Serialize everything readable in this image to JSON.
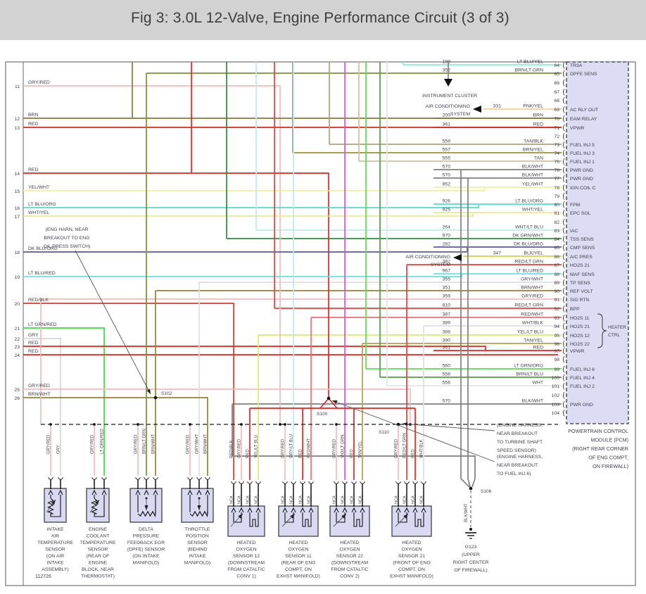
{
  "title": "Fig 3: 3.0L 12-Valve, Engine Performance Circuit (3 of 3)",
  "doc_number": "112726",
  "wire_colors": {
    "RED": "#e8231f",
    "GRY/RED": "#f1bcbc",
    "BRN": "#8f7833",
    "YEL/WHT": "#f1ef9b",
    "WHT/YEL": "#ede98f",
    "LT BLU/ORG": "#4fdccf",
    "DK BLU/ORG": "#5a5aa0",
    "LT BLU/RED": "#62e3e8",
    "RED/BLK": "#de3a2a",
    "LT GRN/RED": "#3ddc3d",
    "GRY": "#d6d6d6",
    "BRN/WHT": "#9c8033",
    "LT BLU/YEL": "#84ebde",
    "BRN/LT GRN": "#78932e",
    "PNK/YEL": "#f6cd9b",
    "TAN/BLK": "#b3a176",
    "BRN/YEL": "#a68d2c",
    "TAN": "#cfc09a",
    "BLK/WHT": "#7f7f7f",
    "WHT/LT BLU": "#bce9f2",
    "DK GRN/WHT": "#2e8b3b",
    "BLK/YEL": "#d9d33a",
    "RED/LT GRN": "#e6413a",
    "GRY/WHT": "#dedede",
    "RED/WHT": "#ef6f6f",
    "WHT/BLK": "#e0e0e0",
    "YEL/LT BLU": "#d9ee69",
    "TAN/YEL": "#baa045",
    "VIO/LT GRN": "#e14fe1",
    "LT GRN/ORG": "#5ce04e",
    "BRN/LT BLU": "#559a46",
    "WHT": "#e4e4e4",
    "GRY/LT BLU": "#c2e7ef"
  },
  "pcm": {
    "name_lines": [
      "POWERTRAIN CONTROL",
      "MODULE (PCM)",
      "(RIGHT REAR CORNER",
      "OF ENG COMPT,",
      "ON FIREWALL)"
    ],
    "heater_bracket": [
      "HEATER",
      "CTRL"
    ],
    "pins": [
      {
        "pin": 64,
        "circuit": "199",
        "color": "LT BLU/YEL",
        "label": "TR3A"
      },
      {
        "pin": 65,
        "circuit": "352",
        "color": "BRN/LT GRN",
        "label": "DPFE SENS"
      },
      {
        "pin": 66
      },
      {
        "pin": 67
      },
      {
        "pin": 68
      },
      {
        "pin": 69,
        "circuit": "331",
        "color": "PNK/YEL",
        "label": "AC RLY OUT"
      },
      {
        "pin": 70,
        "circuit": "200",
        "color": "BRN",
        "label": "EAM RELAY"
      },
      {
        "pin": 71,
        "circuit": "361",
        "color": "RED",
        "label": "VPWR"
      },
      {
        "pin": 72
      },
      {
        "pin": 73,
        "circuit": "559",
        "color": "TAN/BLK",
        "label": "FUEL INJ 5"
      },
      {
        "pin": 74,
        "circuit": "557",
        "color": "BRN/YEL",
        "label": "FUEL INJ 3"
      },
      {
        "pin": 75,
        "circuit": "555",
        "color": "TAN",
        "label": "FUEL INJ 1"
      },
      {
        "pin": 76,
        "circuit": "570",
        "color": "BLK/WHT",
        "label": "PWR GND"
      },
      {
        "pin": 77,
        "circuit": "570",
        "color": "BLK/WHT",
        "label": "PWR GND"
      },
      {
        "pin": 78,
        "circuit": "852",
        "color": "YEL/WHT",
        "label": "IGN COIL C"
      },
      {
        "pin": 79
      },
      {
        "pin": 80,
        "circuit": "926",
        "color": "LT BLU/ORG",
        "label": "FPM"
      },
      {
        "pin": 81,
        "circuit": "925",
        "color": "WHT/YEL",
        "label": "EPC SOL"
      },
      {
        "pin": 82
      },
      {
        "pin": 83,
        "circuit": "264",
        "color": "WHT/LT BLU",
        "label": "IAC"
      },
      {
        "pin": 84,
        "circuit": "970",
        "color": "DK GRN/WHT",
        "label": "TSS SENS"
      },
      {
        "pin": 85,
        "circuit": "282",
        "color": "DK BLU/ORG",
        "label": "CMP SENS"
      },
      {
        "pin": 86,
        "circuit": "347",
        "color": "BLK/YEL",
        "label": "A/C PRES"
      },
      {
        "pin": 87,
        "circuit": "392",
        "color": "RED/LT GRN",
        "label": "HO2S 21"
      },
      {
        "pin": 88,
        "circuit": "967",
        "color": "LT BLU/RED",
        "label": "MAF SENS"
      },
      {
        "pin": 89,
        "circuit": "355",
        "color": "GRY/WHT",
        "label": "TP SENS"
      },
      {
        "pin": 90,
        "circuit": "351",
        "color": "BRN/WHT",
        "label": "REF VOLT"
      },
      {
        "pin": 91,
        "circuit": "359",
        "color": "GRY/RED",
        "label": "SIG RTN"
      },
      {
        "pin": 92,
        "circuit": "810",
        "color": "RED/LT GRN",
        "label": "BPP"
      },
      {
        "pin": 93,
        "circuit": "387",
        "color": "RED/WHT",
        "label": "HO2S 11"
      },
      {
        "pin": 94,
        "circuit": "389",
        "color": "WHT/BLK",
        "label": "HO2S 21"
      },
      {
        "pin": 95,
        "circuit": "388",
        "color": "YEL/LT BLU",
        "label": "HO2S 12"
      },
      {
        "pin": 96,
        "circuit": "390",
        "color": "TAN/YEL",
        "label": "HO2S 22"
      },
      {
        "pin": 97,
        "circuit": "361",
        "color": "RED",
        "label": "VPWR"
      },
      {
        "pin": 98
      },
      {
        "pin": 99,
        "circuit": "560",
        "color": "LT GRN/ORG",
        "label": "FUEL INJ 6"
      },
      {
        "pin": 100,
        "circuit": "558",
        "color": "BRN/LT BLU",
        "label": "FUEL INJ 4"
      },
      {
        "pin": 101,
        "circuit": "556",
        "color": "WHT",
        "label": "FUEL INJ 2"
      },
      {
        "pin": 102
      },
      {
        "pin": 103,
        "circuit": "570",
        "color": "BLK/WHT",
        "label": "PWR GND"
      },
      {
        "pin": 104
      }
    ]
  },
  "left_pins": [
    {
      "pin": 11,
      "color": "GRY/RED"
    },
    {
      "pin": 12,
      "color": "BRN"
    },
    {
      "pin": 13,
      "color": "RED"
    },
    {
      "pin": 14,
      "color": "RED"
    },
    {
      "pin": 15,
      "color": "YEL/WHT"
    },
    {
      "pin": 16,
      "color": "LT BLU/ORG"
    },
    {
      "pin": 17,
      "color": "WHT/YEL"
    },
    {
      "pin": 18,
      "color": "DK BLU/ORG"
    },
    {
      "pin": 19,
      "color": "LT BLU/RED"
    },
    {
      "pin": 20,
      "color": "RED/BLK"
    },
    {
      "pin": 21,
      "color": "LT GRN/RED"
    },
    {
      "pin": 22,
      "color": "GRY"
    },
    {
      "pin": 23,
      "color": "RED"
    },
    {
      "pin": 24,
      "color": "RED"
    },
    {
      "pin": 25,
      "color": "GRY/RED"
    },
    {
      "pin": 26,
      "color": "BRN/WHT"
    }
  ],
  "system_refs": {
    "instrument_cluster": [
      "INSTRUMENT CLUSTER"
    ],
    "ac_system_1": [
      "AIR CONDITIONING",
      "SYSTEM"
    ],
    "ac_system_2": [
      "AIR CONDITIONING",
      "SYSTEM"
    ]
  },
  "callouts": {
    "oil_press": [
      "(ENG HARN, NEAR",
      "BREAKOUT TO ENG",
      "OIL PRESS SWITCH)"
    ],
    "tss": [
      "(ENGINE HARNESS,",
      "NEAR BREAKOUT",
      "TO TURBINE SHAFT",
      "SPEED SENSOR)"
    ],
    "inj6": [
      "(ENGINE HARNESS,",
      "NEAR BREAKOUT",
      "TO FUEL INJ 6)"
    ]
  },
  "splices": [
    {
      "id": "S100"
    },
    {
      "id": "S102"
    },
    {
      "id": "S110"
    },
    {
      "id": "S106"
    }
  ],
  "ground": {
    "wire_label": "BLK/WHT",
    "lines": [
      "G123",
      "(UPPER",
      "RIGHT CENTER",
      "OF FIREWALL)"
    ]
  },
  "sensors": [
    {
      "id": "iat",
      "type": "thermistor",
      "pin_label": "",
      "wires": [
        {
          "color": "GRY/RED"
        },
        {
          "color": "GRY"
        }
      ],
      "label": [
        "INTAKE",
        "AIR",
        "TEMPERATURE",
        "SENSOR",
        "(ON AIR",
        "INTAKE",
        "ASSEMBLY)"
      ]
    },
    {
      "id": "ect",
      "type": "thermistor",
      "pin_label": "",
      "wires": [
        {
          "color": "GRY/RED"
        },
        {
          "color": "LT GRN/RED"
        }
      ],
      "label": [
        "ENGINE",
        "COOLANT",
        "TEMPERATURE",
        "SENSOR",
        "(REAR OF",
        "ENGINE",
        "BLOCK, NEAR",
        "THERMOSTAT)"
      ]
    },
    {
      "id": "dpfe",
      "type": "pot",
      "pin_label": "",
      "wires": [
        {
          "color": "GRY/RED"
        },
        {
          "color": "BRN/LT GRN"
        },
        {
          "color": "BRN/WHT"
        }
      ],
      "label": [
        "DELTA",
        "PRESSURE",
        "FEEDBACK EGR",
        "(DPFE) SENSOR",
        "(ON INTAKE",
        "MANIFOLD)"
      ]
    },
    {
      "id": "tps",
      "type": "pot",
      "pin_label": "",
      "wires": [
        {
          "color": "GRY/RED"
        },
        {
          "color": "GRY/WHT"
        },
        {
          "color": "BRN/WHT"
        }
      ],
      "label": [
        "THROTTLE",
        "POSITION",
        "SENSOR",
        "(BEHIND",
        "INTAKE",
        "MANIFOLD)"
      ]
    },
    {
      "id": "ho2s12",
      "type": "o2",
      "pin_label": "NCA",
      "wires": [
        {
          "color": "RED/BLK"
        },
        {
          "color": "GRY/RED"
        },
        {
          "color": "RED"
        },
        {
          "color": "YEL/LT BLU"
        }
      ],
      "label": [
        "HEATED",
        "OXYGEN",
        "SENSOR 12",
        "(DOWNSTREAM",
        "FROM CATALTIC",
        "CONV 1)"
      ]
    },
    {
      "id": "ho2s11",
      "type": "o2",
      "pin_label": "NCA",
      "wires": [
        {
          "color": "GRY/RED"
        },
        {
          "color": "GRY/LT BLU"
        },
        {
          "color": "RED"
        },
        {
          "color": "RED/WHT"
        }
      ],
      "label": [
        "HEATED",
        "OXYGEN",
        "SENSOR 11",
        "(REAR OF ENG",
        "COMPT, ON",
        "EXHST MANIFOLD)"
      ]
    },
    {
      "id": "ho2s22",
      "type": "o2",
      "pin_label": "NCA",
      "wires": [
        {
          "color": "GRY/RED"
        },
        {
          "color": "VIO/LT GRN"
        },
        {
          "color": "RED"
        },
        {
          "color": "TAN/YEL"
        }
      ],
      "label": [
        "HEATED",
        "OXYGEN",
        "SENSOR 22",
        "(DOWNSTREAM",
        "FROM CATALTIC",
        "CONV 2)"
      ]
    },
    {
      "id": "ho2s21",
      "type": "o2",
      "pin_label": "NCA",
      "wires": [
        {
          "color": "GRY/RED"
        },
        {
          "color": "RED/LT GRN"
        },
        {
          "color": "RED"
        },
        {
          "color": "WHT/BLK"
        }
      ],
      "label": [
        "HEATED",
        "OXYGEN",
        "SENSOR 21",
        "(FRONT OF ENG",
        "COMPT, ON",
        "EXHST MANIFOLD)"
      ]
    }
  ]
}
